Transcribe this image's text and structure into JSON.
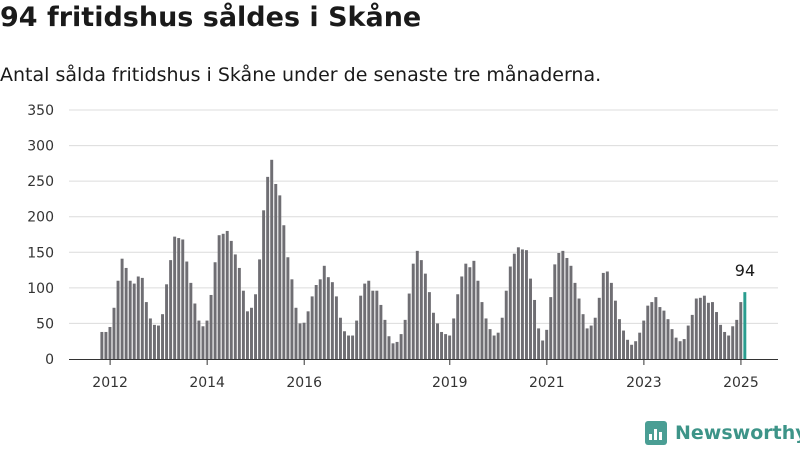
{
  "header": {
    "title": "94 fritidshus såldes i Skåne",
    "subtitle": "Antal sålda fritidshus i Skåne under de senaste tre månaderna."
  },
  "brand": {
    "name": "Newsworthy",
    "icon": "bar-chart-logo-icon",
    "color": "#3d9488"
  },
  "chart_data": {
    "type": "bar",
    "ylim": [
      0,
      350
    ],
    "yticks": [
      0,
      50,
      100,
      150,
      200,
      250,
      300,
      350
    ],
    "xtick_labels": [
      "2012",
      "2014",
      "2016",
      "2019",
      "2021",
      "2023",
      "2025"
    ],
    "xtick_years": [
      2012,
      2014,
      2016,
      2019,
      2021,
      2023,
      2025
    ],
    "x_start": "2011-11",
    "x_end": "2025-06",
    "grid": true,
    "bar_color": "#6f6e73",
    "highlight_color": "#2a9d8f",
    "highlight_label": "94",
    "values": [
      38,
      38,
      45,
      72,
      110,
      141,
      128,
      110,
      106,
      116,
      114,
      80,
      57,
      48,
      47,
      63,
      105,
      139,
      172,
      170,
      168,
      137,
      107,
      78,
      54,
      46,
      54,
      90,
      136,
      174,
      176,
      180,
      166,
      147,
      128,
      96,
      67,
      72,
      91,
      140,
      209,
      256,
      280,
      246,
      230,
      188,
      143,
      112,
      72,
      50,
      51,
      67,
      88,
      104,
      112,
      131,
      115,
      108,
      88,
      58,
      39,
      33,
      33,
      54,
      89,
      106,
      110,
      96,
      96,
      76,
      55,
      32,
      22,
      24,
      35,
      55,
      92,
      134,
      152,
      139,
      120,
      94,
      65,
      50,
      38,
      35,
      33,
      57,
      91,
      116,
      134,
      129,
      138,
      110,
      80,
      57,
      42,
      33,
      37,
      58,
      96,
      130,
      148,
      157,
      154,
      153,
      113,
      83,
      43,
      26,
      41,
      87,
      133,
      149,
      152,
      142,
      131,
      107,
      85,
      63,
      43,
      47,
      58,
      86,
      121,
      123,
      107,
      82,
      56,
      40,
      27,
      20,
      25,
      37,
      54,
      75,
      80,
      87,
      73,
      68,
      56,
      42,
      30,
      25,
      28,
      47,
      62,
      85,
      86,
      89,
      79,
      80,
      66,
      48,
      38,
      33,
      46,
      55,
      80,
      94
    ]
  }
}
